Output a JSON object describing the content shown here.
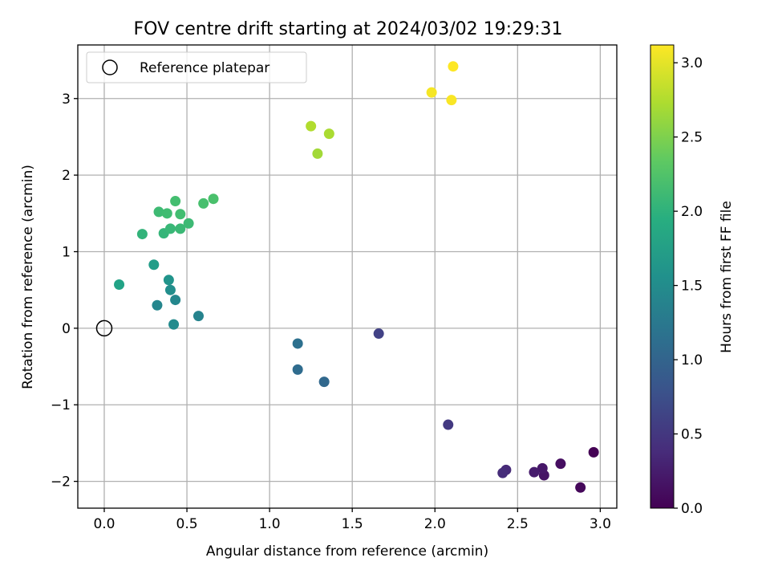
{
  "chart_data": {
    "type": "scatter",
    "title": "FOV centre drift starting at 2024/03/02 19:29:31",
    "xlabel": "Angular distance from reference (arcmin)",
    "ylabel": "Rotation from reference (arcmin)",
    "xlim": [
      -0.16,
      3.1
    ],
    "ylim": [
      -2.35,
      3.7
    ],
    "xticks": [
      0.0,
      0.5,
      1.0,
      1.5,
      2.0,
      2.5,
      3.0
    ],
    "xtick_labels": [
      "0.0",
      "0.5",
      "1.0",
      "1.5",
      "2.0",
      "2.5",
      "3.0"
    ],
    "yticks": [
      -2,
      -1,
      0,
      1,
      2,
      3
    ],
    "ytick_labels": [
      "−2",
      "−1",
      "0",
      "1",
      "2",
      "3"
    ],
    "grid": true,
    "legend": {
      "position": "top-left",
      "entries": [
        {
          "label": "Reference platepar",
          "marker": "open-circle",
          "x": 0.0,
          "y": 0.0
        }
      ]
    },
    "colorbar": {
      "label": "Hours from first FF file",
      "colormap": "viridis",
      "range": [
        0.0,
        3.12
      ],
      "ticks": [
        0.0,
        0.5,
        1.0,
        1.5,
        2.0,
        2.5,
        3.0
      ],
      "tick_labels": [
        "0.0",
        "0.5",
        "1.0",
        "1.5",
        "2.0",
        "2.5",
        "3.0"
      ]
    },
    "points": [
      {
        "x": 2.96,
        "y": -1.62,
        "c": 0.0
      },
      {
        "x": 2.88,
        "y": -2.08,
        "c": 0.06
      },
      {
        "x": 2.76,
        "y": -1.77,
        "c": 0.12
      },
      {
        "x": 2.66,
        "y": -1.92,
        "c": 0.16
      },
      {
        "x": 2.65,
        "y": -1.83,
        "c": 0.2
      },
      {
        "x": 2.6,
        "y": -1.88,
        "c": 0.24
      },
      {
        "x": 2.43,
        "y": -1.85,
        "c": 0.37
      },
      {
        "x": 2.41,
        "y": -1.89,
        "c": 0.4
      },
      {
        "x": 2.08,
        "y": -1.26,
        "c": 0.52
      },
      {
        "x": 1.66,
        "y": -0.07,
        "c": 0.6
      },
      {
        "x": 1.33,
        "y": -0.7,
        "c": 1.05
      },
      {
        "x": 1.17,
        "y": -0.54,
        "c": 1.1
      },
      {
        "x": 1.17,
        "y": -0.2,
        "c": 1.15
      },
      {
        "x": 0.57,
        "y": 0.16,
        "c": 1.38
      },
      {
        "x": 0.42,
        "y": 0.05,
        "c": 1.48
      },
      {
        "x": 0.43,
        "y": 0.37,
        "c": 1.44
      },
      {
        "x": 0.32,
        "y": 0.3,
        "c": 1.42
      },
      {
        "x": 0.4,
        "y": 0.5,
        "c": 1.52
      },
      {
        "x": 0.39,
        "y": 0.63,
        "c": 1.6
      },
      {
        "x": 0.3,
        "y": 0.83,
        "c": 1.72
      },
      {
        "x": 0.09,
        "y": 0.57,
        "c": 1.8
      },
      {
        "x": 0.23,
        "y": 1.23,
        "c": 2.03
      },
      {
        "x": 0.36,
        "y": 1.24,
        "c": 2.05
      },
      {
        "x": 0.4,
        "y": 1.3,
        "c": 2.08
      },
      {
        "x": 0.46,
        "y": 1.3,
        "c": 2.1
      },
      {
        "x": 0.51,
        "y": 1.37,
        "c": 2.12
      },
      {
        "x": 0.33,
        "y": 1.52,
        "c": 2.13
      },
      {
        "x": 0.38,
        "y": 1.5,
        "c": 2.15
      },
      {
        "x": 0.46,
        "y": 1.49,
        "c": 2.17
      },
      {
        "x": 0.43,
        "y": 1.66,
        "c": 2.18
      },
      {
        "x": 0.6,
        "y": 1.63,
        "c": 2.2
      },
      {
        "x": 0.66,
        "y": 1.69,
        "c": 2.22
      },
      {
        "x": 1.29,
        "y": 2.28,
        "c": 2.68
      },
      {
        "x": 1.36,
        "y": 2.54,
        "c": 2.72
      },
      {
        "x": 1.25,
        "y": 2.64,
        "c": 2.75
      },
      {
        "x": 1.98,
        "y": 3.08,
        "c": 3.08
      },
      {
        "x": 2.1,
        "y": 2.98,
        "c": 3.1
      },
      {
        "x": 2.11,
        "y": 3.42,
        "c": 3.12
      }
    ]
  }
}
